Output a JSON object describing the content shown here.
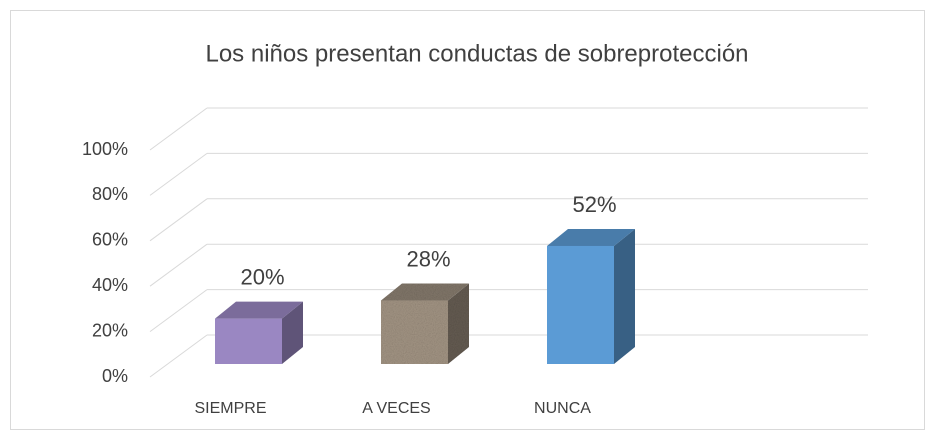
{
  "chart_data": {
    "type": "bar3d",
    "title": "Los niños presentan conductas de sobreprotección",
    "categories": [
      "SIEMPRE",
      "A VECES",
      "NUNCA"
    ],
    "values": [
      20,
      28,
      52
    ],
    "value_labels": [
      "20%",
      "28%",
      "52%"
    ],
    "colors": [
      "#9a87c2",
      "#a39584",
      "#5b9bd5"
    ],
    "ylim": [
      0,
      100
    ],
    "yticks": [
      {
        "value": 0,
        "label": "0%"
      },
      {
        "value": 20,
        "label": "20%"
      },
      {
        "value": 40,
        "label": "40%"
      },
      {
        "value": 60,
        "label": "60%"
      },
      {
        "value": 80,
        "label": "80%"
      },
      {
        "value": 100,
        "label": "100%"
      }
    ],
    "grid": true
  }
}
